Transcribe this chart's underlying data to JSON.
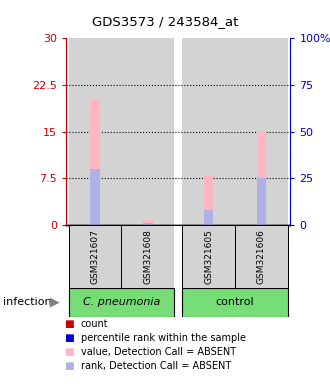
{
  "title": "GDS3573 / 243584_at",
  "samples": [
    "GSM321607",
    "GSM321608",
    "GSM321605",
    "GSM321606"
  ],
  "ylim_left": [
    0,
    30
  ],
  "ylim_right": [
    0,
    100
  ],
  "yticks_left": [
    0,
    7.5,
    15,
    22.5,
    30
  ],
  "yticks_right": [
    0,
    25,
    50,
    75,
    100
  ],
  "ytick_labels_left": [
    "0",
    "7.5",
    "15",
    "22.5",
    "30"
  ],
  "ytick_labels_right": [
    "0",
    "25",
    "50",
    "75",
    "100%"
  ],
  "left_axis_color": "#cc0000",
  "right_axis_color": "#0000cc",
  "dotted_lines": [
    7.5,
    15,
    22.5
  ],
  "bar_bg_color": "#d3d3d3",
  "bars_absent_value": [
    20.0,
    0.7,
    8.0,
    15.0
  ],
  "bars_absent_rank_pct": [
    30.0,
    1.0,
    8.0,
    25.0
  ],
  "infection_label": "infection",
  "legend_colors": [
    "#cc0000",
    "#0000cc",
    "#ffb6c1",
    "#b0b0e8"
  ],
  "legend_labels": [
    "count",
    "percentile rank within the sample",
    "value, Detection Call = ABSENT",
    "rank, Detection Call = ABSENT"
  ],
  "figsize": [
    3.3,
    3.84
  ],
  "dpi": 100
}
